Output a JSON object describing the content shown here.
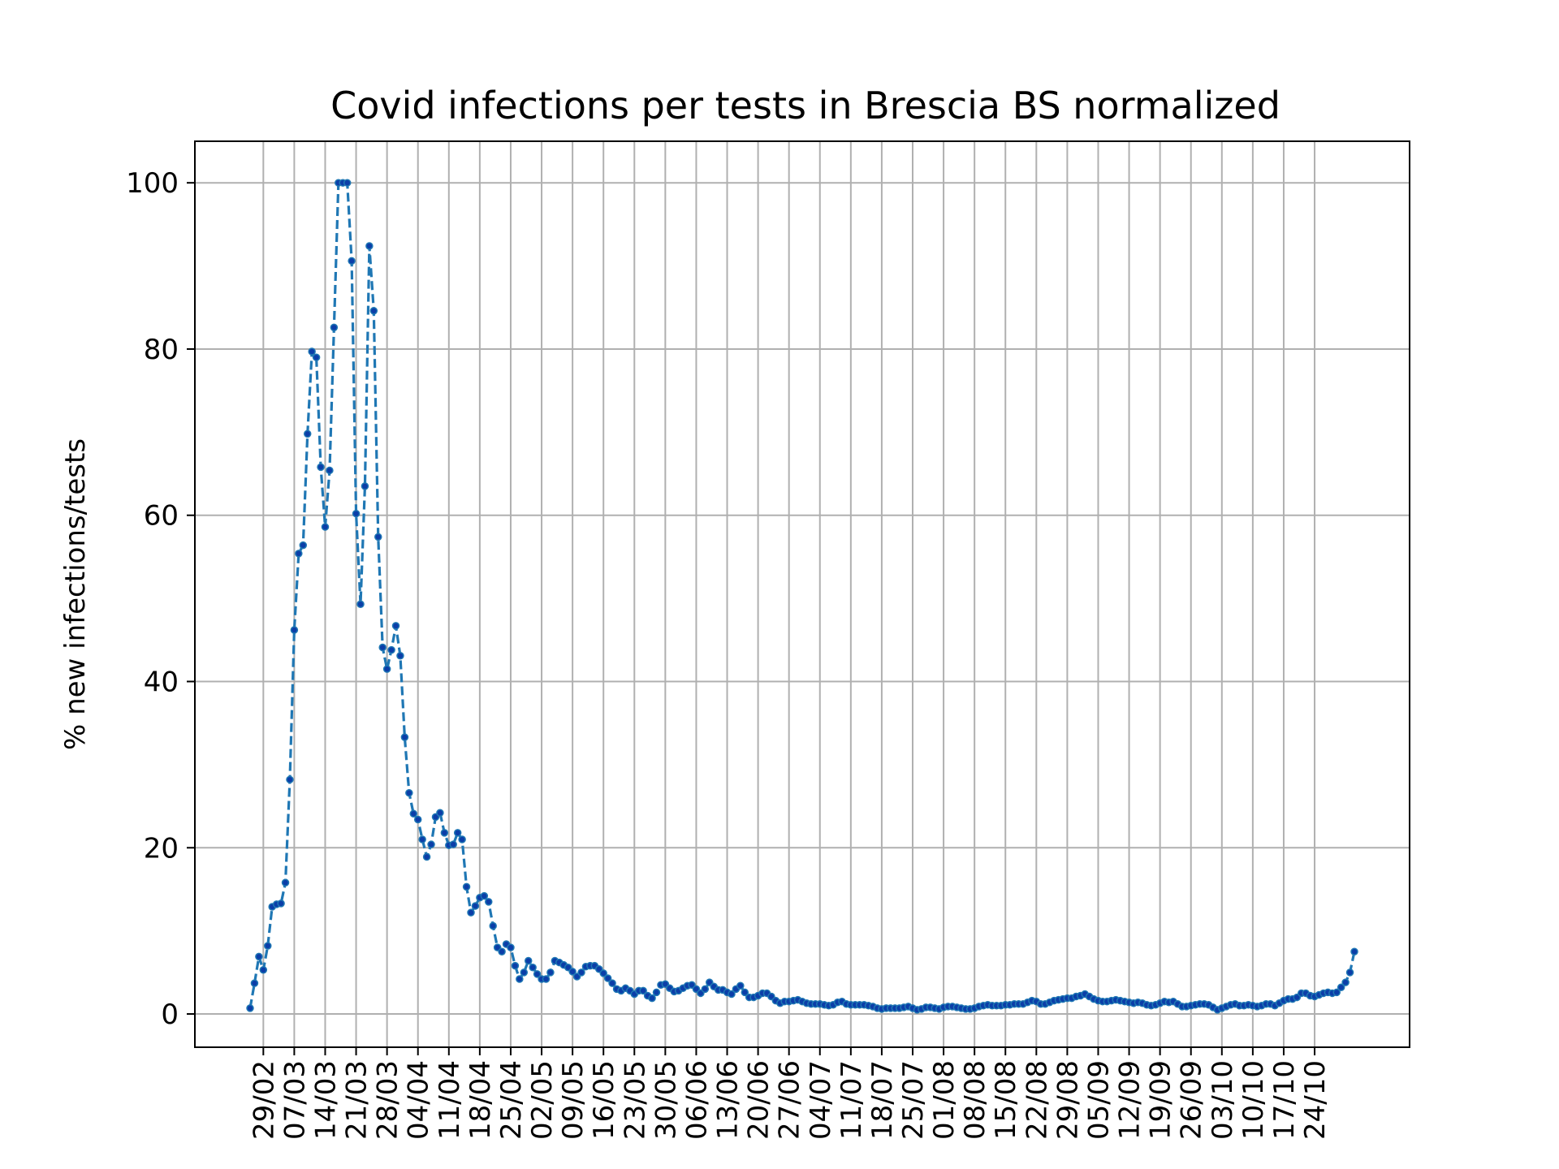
{
  "chart_data": {
    "type": "line",
    "title": "Covid infections per tests in Brescia BS normalized",
    "xlabel": "",
    "ylabel": "% new infections/tests",
    "ylim": [
      -4,
      105
    ],
    "yticks": [
      0,
      20,
      40,
      60,
      80,
      100
    ],
    "grid": true,
    "line_style": "dashed",
    "color": "#1f77b4",
    "marker_color": "#0b3ea8",
    "x_start": "2020-02-26",
    "x_end": "2020-10-24",
    "xtick_labels": [
      "29/02",
      "07/03",
      "14/03",
      "21/03",
      "28/03",
      "04/04",
      "11/04",
      "18/04",
      "25/04",
      "02/05",
      "09/05",
      "16/05",
      "23/05",
      "30/05",
      "06/06",
      "13/06",
      "20/06",
      "27/06",
      "04/07",
      "11/07",
      "18/07",
      "25/07",
      "01/08",
      "08/08",
      "15/08",
      "22/08",
      "29/08",
      "05/09",
      "12/09",
      "19/09",
      "26/09",
      "03/10",
      "10/10",
      "17/10",
      "24/10"
    ],
    "series": [
      {
        "values": [
          0.7,
          3.7,
          6.9,
          5.3,
          8.2,
          12.9,
          13.2,
          13.3,
          15.8,
          28.2,
          46.2,
          55.4,
          56.4,
          69.8,
          79.7,
          79.0,
          65.8,
          58.6,
          65.4,
          82.6,
          100,
          100,
          100,
          90.6,
          60.2,
          49.3,
          63.5,
          92.4,
          84.6,
          57.4,
          44.1,
          41.5,
          43.8,
          46.7,
          43.1,
          33.3,
          26.6,
          24.1,
          23.4,
          21.0,
          18.9,
          20.4,
          23.7,
          24.2,
          21.8,
          20.3,
          20.4,
          21.8,
          21.0,
          15.3,
          12.2,
          13.0,
          14.0,
          14.2,
          13.5,
          10.6,
          8.0,
          7.5,
          8.4,
          8.0,
          5.8,
          4.2,
          5.0,
          6.4,
          5.6,
          4.8,
          4.2,
          4.2,
          5.0,
          6.4,
          6.2,
          5.9,
          5.6,
          5.1,
          4.5,
          5.0,
          5.7,
          5.8,
          5.8,
          5.4,
          4.9,
          4.3,
          3.7,
          3.0,
          2.8,
          3.1,
          2.8,
          2.4,
          2.8,
          2.8,
          2.2,
          1.9,
          2.6,
          3.5,
          3.6,
          3.1,
          2.7,
          2.8,
          3.1,
          3.4,
          3.5,
          3.0,
          2.5,
          3.0,
          3.8,
          3.3,
          2.9,
          2.9,
          2.6,
          2.4,
          3.0,
          3.4,
          2.6,
          2.0,
          2.0,
          2.2,
          2.5,
          2.5,
          2.1,
          1.6,
          1.3,
          1.5,
          1.5,
          1.6,
          1.7,
          1.5,
          1.3,
          1.2,
          1.2,
          1.2,
          1.1,
          1.0,
          1.1,
          1.4,
          1.5,
          1.2,
          1.1,
          1.1,
          1.1,
          1.1,
          1.0,
          0.9,
          0.7,
          0.6,
          0.7,
          0.7,
          0.7,
          0.7,
          0.8,
          0.9,
          0.7,
          0.5,
          0.6,
          0.8,
          0.8,
          0.7,
          0.6,
          0.8,
          0.9,
          0.9,
          0.8,
          0.7,
          0.6,
          0.6,
          0.7,
          0.9,
          1.0,
          1.1,
          1.0,
          1.0,
          1.0,
          1.1,
          1.1,
          1.2,
          1.2,
          1.2,
          1.4,
          1.6,
          1.5,
          1.2,
          1.2,
          1.4,
          1.6,
          1.7,
          1.8,
          1.9,
          1.9,
          2.1,
          2.2,
          2.4,
          2.1,
          1.8,
          1.6,
          1.5,
          1.5,
          1.6,
          1.7,
          1.6,
          1.5,
          1.4,
          1.3,
          1.4,
          1.3,
          1.1,
          1.0,
          1.1,
          1.3,
          1.5,
          1.4,
          1.5,
          1.2,
          0.9,
          0.9,
          1.0,
          1.1,
          1.2,
          1.2,
          1.1,
          0.8,
          0.5,
          0.7,
          0.9,
          1.1,
          1.2,
          1.0,
          1.0,
          1.1,
          1.0,
          0.9,
          1.0,
          1.2,
          1.2,
          1.0,
          1.3,
          1.6,
          1.8,
          1.8,
          2.0,
          2.5,
          2.5,
          2.2,
          2.1,
          2.3,
          2.5,
          2.6,
          2.5,
          2.6,
          3.2,
          3.8,
          5.0,
          7.5
        ]
      }
    ]
  }
}
